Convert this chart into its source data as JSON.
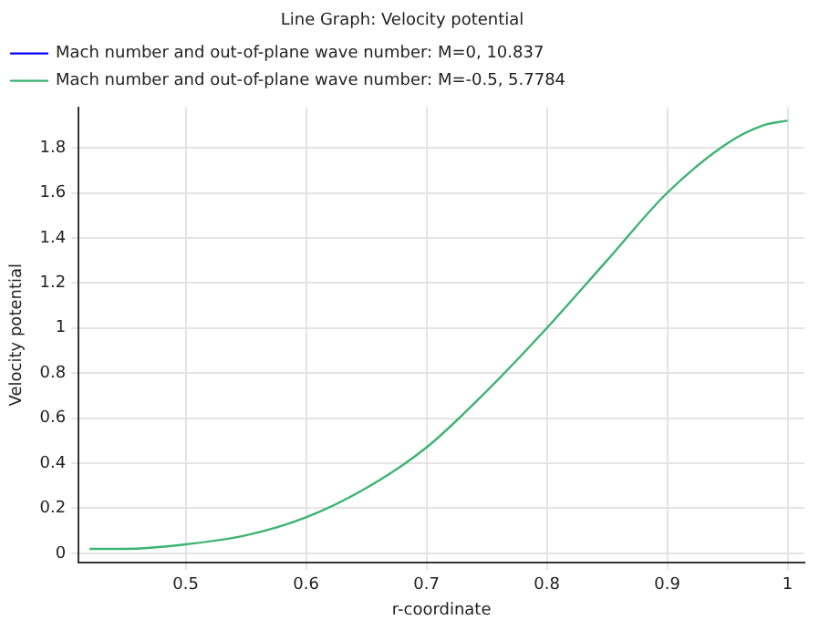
{
  "chart_data": {
    "type": "line",
    "title": "Line Graph: Velocity potential",
    "xlabel": "r-coordinate",
    "ylabel": "Velocity potential",
    "x": [
      0.42,
      0.45,
      0.5,
      0.55,
      0.6,
      0.65,
      0.7,
      0.75,
      0.8,
      0.85,
      0.9,
      0.95,
      0.98,
      1.0
    ],
    "series": [
      {
        "name": "Mach number and out-of-plane wave number: M=0, 10.837",
        "color": "#0000ff",
        "values": [
          null,
          null,
          null,
          null,
          null,
          null,
          null,
          null,
          null,
          null,
          null,
          null,
          null,
          null
        ]
      },
      {
        "name": "Mach number and out-of-plane wave number: M=-0.5, 5.7784",
        "color": "#3cb371",
        "values": [
          0.02,
          0.02,
          0.04,
          0.08,
          0.16,
          0.29,
          0.47,
          0.72,
          1.0,
          1.3,
          1.6,
          1.82,
          1.9,
          1.92
        ]
      }
    ],
    "xlim": [
      0.411,
      1.014
    ],
    "ylim": [
      -0.04,
      1.98
    ],
    "xticks": [
      0.5,
      0.6,
      0.7,
      0.8,
      0.9,
      1
    ],
    "yticks": [
      0,
      0.2,
      0.4,
      0.6,
      0.8,
      1,
      1.2,
      1.4,
      1.6,
      1.8
    ],
    "grid": true,
    "legend": "top left",
    "marker": "none",
    "line_style": "solid"
  }
}
